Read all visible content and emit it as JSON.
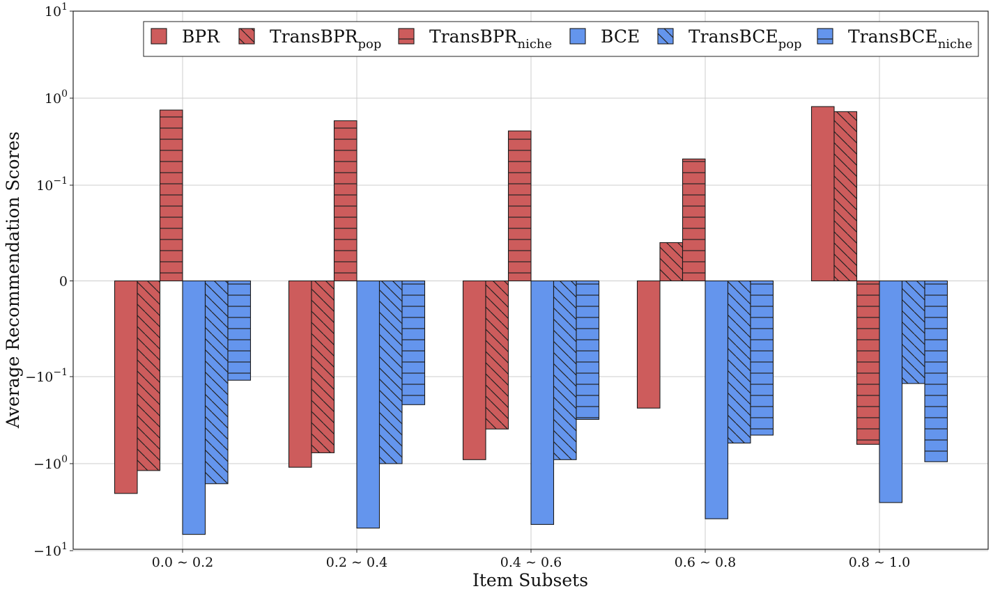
{
  "chart_data": {
    "type": "bar",
    "xlabel": "Item Subsets",
    "ylabel": "Average Recommendation Scores",
    "yscale": "symlog",
    "ylim": [
      -10,
      10
    ],
    "yticks": [
      {
        "value": 10,
        "base": "10",
        "exp": "1"
      },
      {
        "value": 1,
        "base": "10",
        "exp": "0"
      },
      {
        "value": 0.1,
        "base": "10",
        "exp": "−1"
      },
      {
        "value": 0,
        "base": "0",
        "exp": ""
      },
      {
        "value": -0.1,
        "base": "−10",
        "exp": "−1"
      },
      {
        "value": -1,
        "base": "−10",
        "exp": "0"
      },
      {
        "value": -10,
        "base": "−10",
        "exp": "1"
      }
    ],
    "categories": [
      "0.0 ∼ 0.2",
      "0.2 ∼ 0.4",
      "0.4 ∼ 0.6",
      "0.6 ∼ 0.8",
      "0.8 ∼ 1.0"
    ],
    "grid": true,
    "legend_position": "top-right",
    "series": [
      {
        "name": "BPR",
        "name_main": "BPR",
        "name_sub": "",
        "color": "#cd5c5c",
        "hatch": "none",
        "values": [
          -2.2,
          -1.1,
          -0.9,
          -0.23,
          0.8
        ]
      },
      {
        "name": "TransBPRpop",
        "name_main": "TransBPR",
        "name_sub": "pop",
        "color": "#cd5c5c",
        "hatch": "diagonal",
        "values": [
          -1.2,
          -0.75,
          -0.4,
          0.04,
          0.7
        ]
      },
      {
        "name": "TransBPRniche",
        "name_main": "TransBPR",
        "name_sub": "niche",
        "color": "#cd5c5c",
        "hatch": "horizontal",
        "values": [
          0.73,
          0.55,
          0.42,
          0.2,
          -0.6
        ]
      },
      {
        "name": "BCE",
        "name_main": "BCE",
        "name_sub": "",
        "color": "#6495ed",
        "hatch": "none",
        "values": [
          -6.5,
          -5.5,
          -5.0,
          -4.3,
          -2.8
        ]
      },
      {
        "name": "TransBCEpop",
        "name_main": "TransBCE",
        "name_sub": "pop",
        "color": "#6495ed",
        "hatch": "diagonal",
        "values": [
          -1.7,
          -1.0,
          -0.9,
          -0.58,
          -0.12
        ]
      },
      {
        "name": "TransBCEniche",
        "name_main": "TransBCE",
        "name_sub": "niche",
        "color": "#6495ed",
        "hatch": "horizontal",
        "values": [
          -0.11,
          -0.21,
          -0.31,
          -0.47,
          -0.95
        ]
      }
    ]
  }
}
